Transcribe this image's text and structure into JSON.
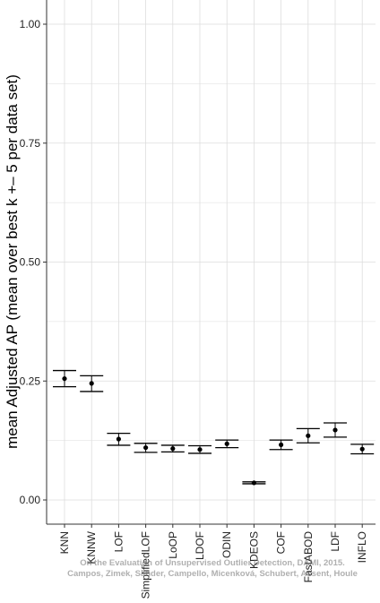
{
  "chart_data": {
    "type": "errorbar",
    "title": "",
    "xlabel": "",
    "ylabel": "mean Adjusted AP (mean over best k +– 5 per data set)",
    "ylim": [
      -0.05,
      1.05
    ],
    "yticks": [
      0.0,
      0.25,
      0.5,
      0.75,
      1.0
    ],
    "ytick_labels": [
      "0.00",
      "0.25",
      "0.50",
      "0.75",
      "1.00"
    ],
    "grid": true,
    "categories": [
      "KNN",
      "KNNW",
      "LOF",
      "SimplifiedLOF",
      "LoOP",
      "LDOF",
      "ODIN",
      "KDEOS",
      "COF",
      "FastABOD",
      "LDF",
      "INFLO"
    ],
    "series": [
      {
        "mean": [
          0.255,
          0.245,
          0.128,
          0.11,
          0.108,
          0.106,
          0.118,
          0.036,
          0.116,
          0.135,
          0.147,
          0.107
        ],
        "lower": [
          0.238,
          0.228,
          0.115,
          0.1,
          0.101,
          0.098,
          0.11,
          0.034,
          0.106,
          0.12,
          0.132,
          0.097
        ],
        "upper": [
          0.272,
          0.261,
          0.14,
          0.119,
          0.115,
          0.114,
          0.126,
          0.038,
          0.126,
          0.15,
          0.162,
          0.117
        ]
      }
    ],
    "colors": {
      "background": "#ffffff",
      "grid": "#dddddd",
      "axis": "#333333",
      "marks": "#000000"
    }
  },
  "watermark": {
    "line1": "On the Evaluation of Unsupervised Outlier Detection, DAMI, 2015.",
    "line2": "Campos, Zimek, Sander, Campello, Micenková, Schubert, Assent, Houle"
  }
}
